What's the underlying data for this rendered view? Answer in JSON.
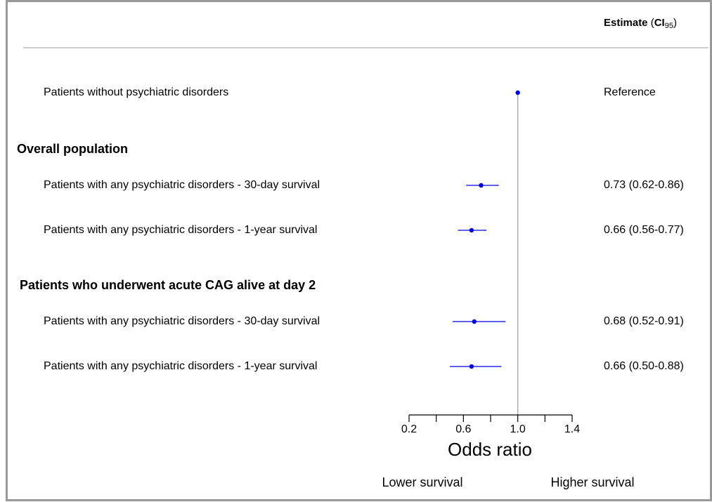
{
  "chart_data": {
    "type": "forest",
    "column_header": {
      "estimate": "Estimate",
      "open": "(",
      "ci": "CI",
      "sub": "95",
      "close": ")"
    },
    "reference": {
      "label": "Patients without psychiatric disorders",
      "value": 1,
      "value_label": "Reference"
    },
    "groups": [
      {
        "name": "Overall population",
        "rows": [
          {
            "label": "Patients with any psychiatric disorders - 30-day survival",
            "value": 0.73,
            "lower": 0.62,
            "upper": 0.86,
            "value_label": "0.73 (0.62-0.86)"
          },
          {
            "label": "Patients with any psychiatric disorders - 1-year survival",
            "value": 0.66,
            "lower": 0.56,
            "upper": 0.77,
            "value_label": "0.66 (0.56-0.77)"
          }
        ]
      },
      {
        "name": "Patients who underwent acute CAG alive at day 2",
        "rows": [
          {
            "label": "Patients with any psychiatric disorders - 30-day survival",
            "value": 0.68,
            "lower": 0.52,
            "upper": 0.91,
            "value_label": "0.68 (0.52-0.91)"
          },
          {
            "label": "Patients with any psychiatric disorders - 1-year survival",
            "value": 0.66,
            "lower": 0.5,
            "upper": 0.88,
            "value_label": "0.66 (0.50-0.88)"
          }
        ]
      }
    ],
    "xlim": [
      0.2,
      1.4
    ],
    "xticks": [
      0.2,
      0.6,
      {
        "value": 1,
        "label": "1.0"
      },
      1.4
    ],
    "minor_xticks": [
      0.4,
      0.8,
      1.2
    ],
    "reference_line": 1,
    "xlabel": "Odds ratio",
    "annotations": {
      "left": "Lower survival",
      "right": "Higher survival"
    },
    "color": "#0000e6"
  }
}
